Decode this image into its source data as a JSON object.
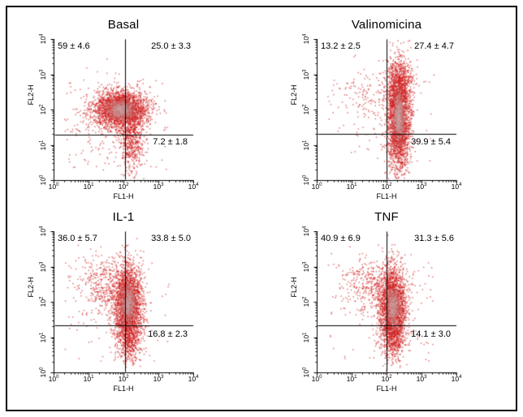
{
  "figure": {
    "background": "#ffffff",
    "border_color": "#000000"
  },
  "chart_data": [
    {
      "type": "scatter",
      "title": "Basal",
      "xlabel": "FL1-H",
      "ylabel": "FL2-H",
      "x_scale": "log",
      "y_scale": "log",
      "x_tick_exponents": [
        0,
        1,
        2,
        3,
        4
      ],
      "y_tick_exponents": [
        0,
        1,
        2,
        3,
        4
      ],
      "point_color": "#d01c1c",
      "quadrant_lines": {
        "x_exponent": 2.05,
        "y_exponent": 1.28
      },
      "quadrant_stats": {
        "upper_left": "59 ± 4.6",
        "upper_right": "25.0 ± 3.3",
        "lower_right": "7.2 ± 1.8"
      },
      "seed": 101,
      "clusters": [
        {
          "cx": 1.92,
          "cy": 2.02,
          "sx": 0.38,
          "sy": 0.27,
          "n": 2600,
          "core": true
        },
        {
          "cx": 2.22,
          "cy": 1.2,
          "sx": 0.18,
          "sy": 0.45,
          "n": 620
        },
        {
          "cx": 1.25,
          "cy": 1.6,
          "sx": 0.5,
          "sy": 0.55,
          "n": 130
        }
      ],
      "sprinkle": {
        "n": 70,
        "x": [
          0.3,
          3.3
        ],
        "y": [
          0.3,
          3.1
        ]
      }
    },
    {
      "type": "scatter",
      "title": "Valinomicina",
      "xlabel": "FL1-H",
      "ylabel": "FL2-H",
      "x_scale": "log",
      "y_scale": "log",
      "x_tick_exponents": [
        0,
        1,
        2,
        3,
        4
      ],
      "y_tick_exponents": [
        0,
        1,
        2,
        3,
        4
      ],
      "point_color": "#d01c1c",
      "quadrant_lines": {
        "x_exponent": 2.0,
        "y_exponent": 1.3
      },
      "quadrant_stats": {
        "upper_left": "13.2 ± 2.5",
        "upper_right": "27.4 ± 4.7",
        "lower_right": "39.9 ± 5.4"
      },
      "seed": 202,
      "clusters": [
        {
          "cx": 2.33,
          "cy": 1.8,
          "sx": 0.16,
          "sy": 0.72,
          "n": 3000,
          "core": true
        },
        {
          "cx": 2.36,
          "cy": 2.85,
          "sx": 0.24,
          "sy": 0.3,
          "n": 320
        },
        {
          "cx": 1.45,
          "cy": 2.35,
          "sx": 0.5,
          "sy": 0.45,
          "n": 140
        }
      ],
      "sprinkle": {
        "n": 60,
        "x": [
          0.3,
          3.4
        ],
        "y": [
          0.3,
          3.2
        ]
      }
    },
    {
      "type": "scatter",
      "title": "IL-1",
      "xlabel": "FL1-H",
      "ylabel": "FL2-H",
      "x_scale": "log",
      "y_scale": "log",
      "x_tick_exponents": [
        0,
        1,
        2,
        3,
        4
      ],
      "y_tick_exponents": [
        0,
        1,
        2,
        3,
        4
      ],
      "point_color": "#d01c1c",
      "quadrant_lines": {
        "x_exponent": 2.05,
        "y_exponent": 1.33
      },
      "quadrant_stats": {
        "upper_left": "36.0 ± 5.7",
        "upper_right": "33.8 ± 5.0",
        "lower_right": "16.8 ± 2.3"
      },
      "seed": 303,
      "clusters": [
        {
          "cx": 2.12,
          "cy": 1.95,
          "sx": 0.2,
          "sy": 0.55,
          "n": 2500,
          "core": true
        },
        {
          "cx": 2.15,
          "cy": 1.0,
          "sx": 0.17,
          "sy": 0.35,
          "n": 480
        },
        {
          "cx": 1.5,
          "cy": 2.45,
          "sx": 0.42,
          "sy": 0.45,
          "n": 430
        }
      ],
      "sprinkle": {
        "n": 80,
        "x": [
          0.3,
          3.4
        ],
        "y": [
          0.3,
          3.2
        ]
      }
    },
    {
      "type": "scatter",
      "title": "TNF",
      "xlabel": "FL1-H",
      "ylabel": "FL2-H",
      "x_scale": "log",
      "y_scale": "log",
      "x_tick_exponents": [
        0,
        1,
        2,
        3,
        4
      ],
      "y_tick_exponents": [
        0,
        1,
        2,
        3,
        4
      ],
      "point_color": "#d01c1c",
      "quadrant_lines": {
        "x_exponent": 2.0,
        "y_exponent": 1.33
      },
      "quadrant_stats": {
        "upper_left": "40.9 ± 6.9",
        "upper_right": "31.3 ± 5.6",
        "lower_right": "14.1 ± 3.0"
      },
      "seed": 404,
      "clusters": [
        {
          "cx": 2.16,
          "cy": 1.88,
          "sx": 0.2,
          "sy": 0.55,
          "n": 2400,
          "core": true
        },
        {
          "cx": 2.2,
          "cy": 1.0,
          "sx": 0.15,
          "sy": 0.33,
          "n": 400
        },
        {
          "cx": 1.62,
          "cy": 2.5,
          "sx": 0.44,
          "sy": 0.4,
          "n": 420
        }
      ],
      "sprinkle": {
        "n": 90,
        "x": [
          0.3,
          3.4
        ],
        "y": [
          0.3,
          3.2
        ]
      }
    }
  ]
}
